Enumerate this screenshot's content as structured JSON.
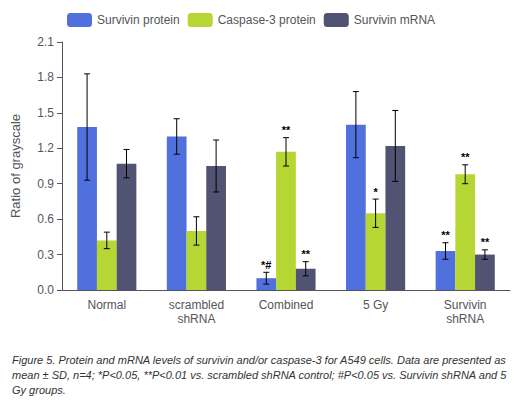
{
  "chart_data": {
    "type": "bar",
    "categories": [
      "Normal",
      "scrambled\nshRNA",
      "Combined",
      "5 Gy",
      "Survivin\nshRNA"
    ],
    "series": [
      {
        "name": "Survivin protein",
        "values": [
          1.38,
          1.3,
          0.1,
          1.4,
          0.33
        ],
        "errors": [
          0.45,
          0.15,
          0.05,
          0.28,
          0.07
        ]
      },
      {
        "name": "Caspase-3 protein",
        "values": [
          0.42,
          0.5,
          1.17,
          0.65,
          0.98
        ],
        "errors": [
          0.07,
          0.12,
          0.12,
          0.12,
          0.08
        ]
      },
      {
        "name": "Survivin mRNA",
        "values": [
          1.07,
          1.05,
          0.18,
          1.22,
          0.3
        ],
        "errors": [
          0.12,
          0.22,
          0.06,
          0.3,
          0.04
        ]
      }
    ],
    "ylabel": "Ratio of grayscale",
    "ylim": [
      0,
      2.1
    ],
    "yticks": [
      {
        "value": 0,
        "label": "0.0"
      },
      0.3,
      0.6,
      0.9,
      1.2,
      1.5,
      1.8,
      2.1
    ],
    "annotations": [
      {
        "category": "Combined",
        "series": "Survivin protein",
        "text": "*#"
      },
      {
        "category": "Combined",
        "series": "Caspase-3 protein",
        "text": "**"
      },
      {
        "category": "Combined",
        "series": "Survivin mRNA",
        "text": "**"
      },
      {
        "category": "5 Gy",
        "series": "Caspase-3 protein",
        "text": "*"
      },
      {
        "category": "Survivin\nshRNA",
        "series": "Survivin protein",
        "text": "**"
      },
      {
        "category": "Survivin\nshRNA",
        "series": "Caspase-3 protein",
        "text": "**"
      },
      {
        "category": "Survivin\nshRNA",
        "series": "Survivin mRNA",
        "text": "**"
      }
    ],
    "caption": "Figure 5. Protein and mRNA levels of survivin and/or caspase-3 for A549 cells. Data are presented as mean ± SD, n=4; *P<0.05, **P<0.01 vs. scrambled shRNA control; #P<0.05 vs. Survivin shRNA and 5 Gy groups.",
    "legend": "upper left",
    "grid": false
  }
}
